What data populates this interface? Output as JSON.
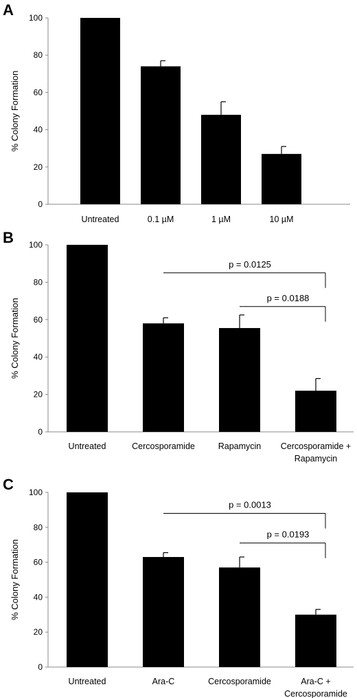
{
  "chart_data": [
    {
      "type": "bar",
      "panel_label": "A",
      "ylabel": "% Colony Formation",
      "ylim": [
        0,
        100
      ],
      "yticks": [
        0,
        20,
        40,
        60,
        80,
        100
      ],
      "categories": [
        "Untreated",
        "0.1 µM",
        "1 µM",
        "10 µM"
      ],
      "values": [
        100,
        74,
        48,
        27
      ],
      "errors": [
        0,
        3,
        7,
        4
      ],
      "bar_color": "#000000",
      "brackets": []
    },
    {
      "type": "bar",
      "panel_label": "B",
      "ylabel": "% Colony Formation",
      "ylim": [
        0,
        100
      ],
      "yticks": [
        0,
        20,
        40,
        60,
        80,
        100
      ],
      "categories": [
        "Untreated",
        "Cercosporamide",
        "Rapamycin",
        "Cercosporamide +|Rapamycin"
      ],
      "values": [
        100,
        58,
        55.5,
        22
      ],
      "errors": [
        0,
        3,
        7,
        6.5
      ],
      "bar_color": "#000000",
      "brackets": [
        {
          "from": 1,
          "to": 3,
          "y": 85,
          "label": "p = 0.0125"
        },
        {
          "from": 2,
          "to": 3,
          "y": 67,
          "label": "p = 0.0188"
        }
      ]
    },
    {
      "type": "bar",
      "panel_label": "C",
      "ylabel": "% Colony Formation",
      "ylim": [
        0,
        100
      ],
      "yticks": [
        0,
        20,
        40,
        60,
        80,
        100
      ],
      "categories": [
        "Untreated",
        "Ara-C",
        "Cercosporamide",
        "Ara-C +|Cercosporamide"
      ],
      "values": [
        100,
        63,
        57,
        30
      ],
      "errors": [
        0,
        2.5,
        6,
        3
      ],
      "bar_color": "#000000",
      "brackets": [
        {
          "from": 1,
          "to": 3,
          "y": 88,
          "label": "p = 0.0013"
        },
        {
          "from": 2,
          "to": 3,
          "y": 71,
          "label": "p = 0.0193"
        }
      ]
    }
  ]
}
